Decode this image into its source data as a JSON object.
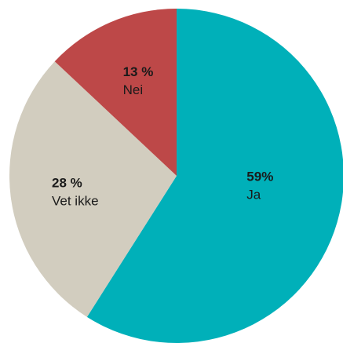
{
  "chart_data": {
    "type": "pie",
    "title": "",
    "start_angle_deg": 0,
    "direction": "clockwise",
    "slices": [
      {
        "label": "Ja",
        "value": 59,
        "value_label": "59%",
        "color": "#00b0b9"
      },
      {
        "label": "Vet ikke",
        "value": 28,
        "value_label": "28 %",
        "color": "#d2cdbf"
      },
      {
        "label": "Nei",
        "value": 13,
        "value_label": "13 %",
        "color": "#bd4848"
      }
    ],
    "legend": "none",
    "labels_inside": true
  }
}
